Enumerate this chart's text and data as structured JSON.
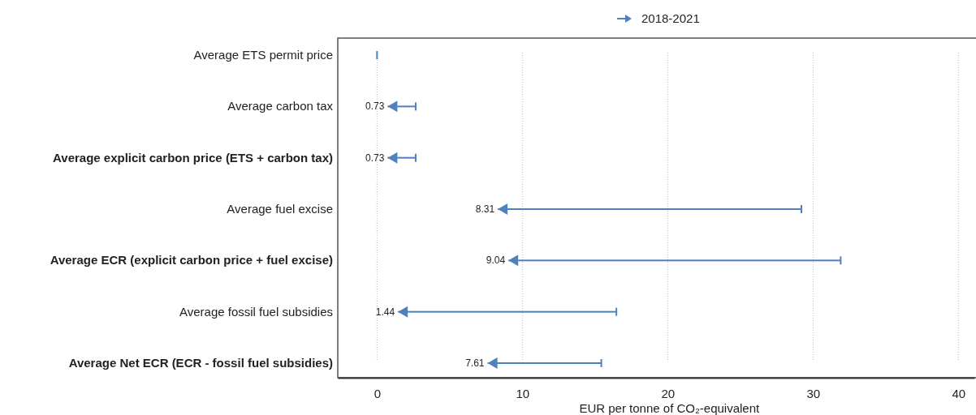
{
  "chart_data": {
    "type": "bar",
    "orientation": "horizontal",
    "xlabel": "EUR per tonne of CO₂-equivalent",
    "categories": [
      "Average ETS permit price",
      "Average carbon tax",
      "Average explicit carbon price (ETS + carbon tax)",
      "Average fuel excise",
      "Average ECR (explicit carbon price + fuel excise)",
      "Average fossil fuel subsidies",
      "Average Net ECR (ECR - fossil fuel subsidies)"
    ],
    "series": [
      {
        "name": "2018-2021",
        "color": "#4f81bd",
        "base": [
          0,
          2.66,
          2.66,
          29.2,
          31.9,
          16.47,
          15.43
        ],
        "values": [
          0,
          -1.93,
          -1.93,
          -20.89,
          -22.86,
          -15.03,
          -7.82
        ],
        "value_labels": [
          null,
          "0.73",
          "0.73",
          "8.31",
          "9.04",
          "1.44",
          "7.61"
        ]
      }
    ],
    "xlim": [
      -2.7,
      41.1
    ],
    "xticks": [
      0,
      10,
      20,
      30,
      40
    ],
    "grid": "x",
    "legend": "top"
  }
}
